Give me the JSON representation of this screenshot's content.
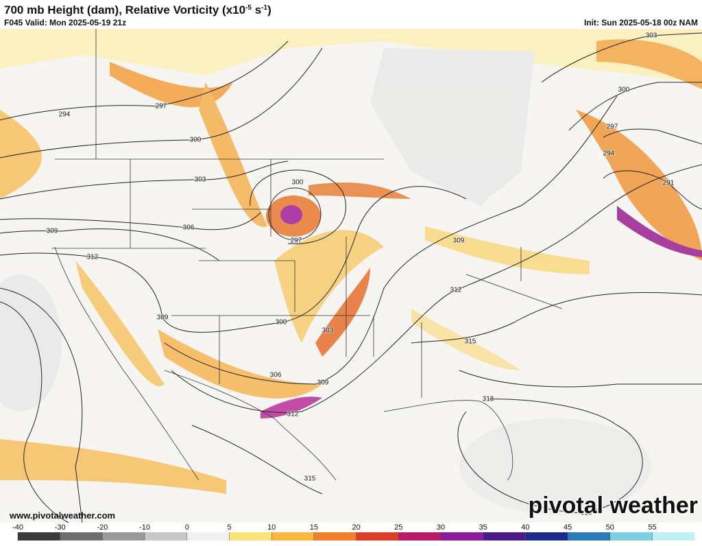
{
  "header": {
    "title_parts": [
      "700 mb Height (dam), Relative Vorticity (x10",
      "-5",
      " s",
      "-1",
      ")"
    ],
    "valid": "F045 Valid: Mon 2025-05-19 21z",
    "init": "Init: Sun 2025-05-18 00z NAM"
  },
  "map": {
    "contour_labels": [
      294,
      297,
      300,
      303,
      306,
      309,
      312,
      300,
      297,
      309,
      300,
      303,
      306,
      309,
      312,
      315,
      312,
      309,
      315,
      318,
      318,
      300,
      297,
      294,
      291,
      303
    ]
  },
  "footer": {
    "website": "www.pivotalweather.com",
    "logo": "pivotal weather"
  },
  "colorbar": {
    "ticks": [
      -40,
      -30,
      -20,
      -10,
      0,
      5,
      10,
      15,
      20,
      25,
      30,
      35,
      40,
      45,
      50,
      55
    ]
  }
}
